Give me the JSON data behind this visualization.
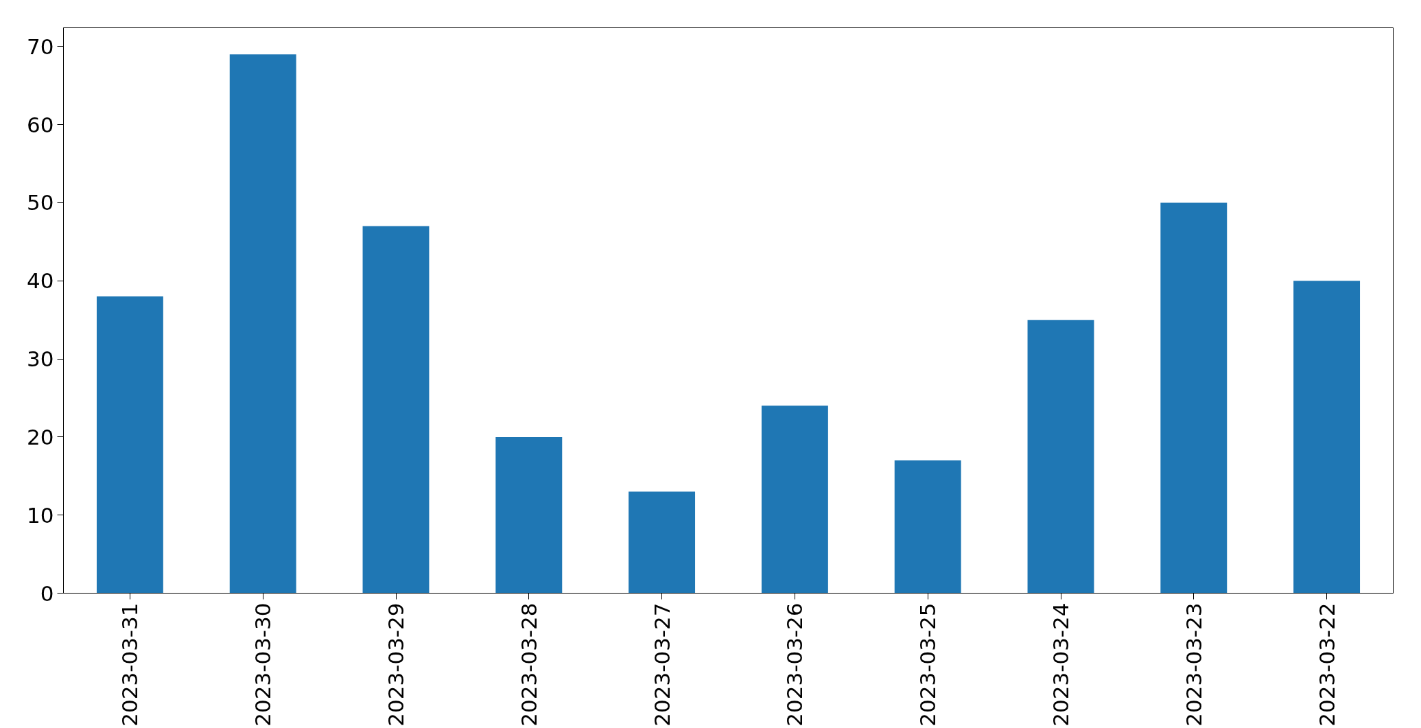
{
  "chart_data": {
    "type": "bar",
    "categories": [
      "2023-03-31",
      "2023-03-30",
      "2023-03-29",
      "2023-03-28",
      "2023-03-27",
      "2023-03-26",
      "2023-03-25",
      "2023-03-24",
      "2023-03-23",
      "2023-03-22"
    ],
    "values": [
      38,
      69,
      47,
      20,
      13,
      24,
      17,
      35,
      50,
      40
    ],
    "color": "#1f77b4",
    "ylim": [
      0,
      72.4
    ],
    "yticks": [
      0,
      10,
      20,
      30,
      40,
      50,
      60,
      70
    ],
    "grid": false
  }
}
